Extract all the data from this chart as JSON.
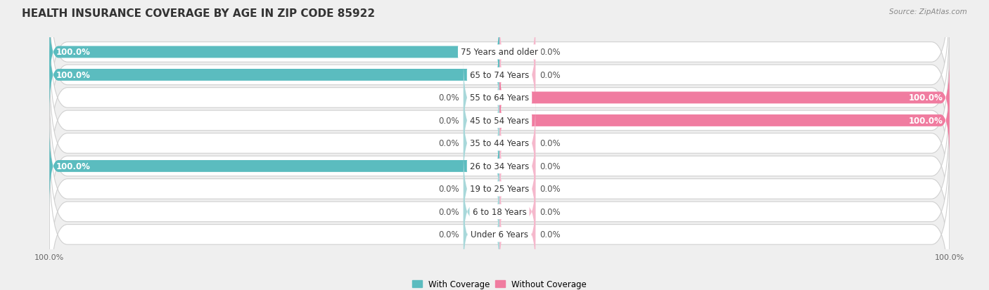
{
  "title": "HEALTH INSURANCE COVERAGE BY AGE IN ZIP CODE 85922",
  "source": "Source: ZipAtlas.com",
  "categories": [
    "Under 6 Years",
    "6 to 18 Years",
    "19 to 25 Years",
    "26 to 34 Years",
    "35 to 44 Years",
    "45 to 54 Years",
    "55 to 64 Years",
    "65 to 74 Years",
    "75 Years and older"
  ],
  "with_coverage": [
    0.0,
    0.0,
    0.0,
    100.0,
    0.0,
    0.0,
    0.0,
    100.0,
    100.0
  ],
  "without_coverage": [
    0.0,
    0.0,
    0.0,
    0.0,
    0.0,
    100.0,
    100.0,
    0.0,
    0.0
  ],
  "color_with": "#5bbcbf",
  "color_without": "#f07ca0",
  "color_with_zero": "#a8d8da",
  "color_without_zero": "#f5b8cc",
  "bg_color": "#efefef",
  "bar_bg_color": "#ffffff",
  "title_fontsize": 11,
  "label_fontsize": 8.5,
  "tick_fontsize": 8,
  "bar_height": 0.52,
  "stub_size": 8.0,
  "xlim": [
    -100,
    100
  ],
  "x_ticks": [
    -100,
    100
  ],
  "x_tick_labels": [
    "100.0%",
    "100.0%"
  ]
}
